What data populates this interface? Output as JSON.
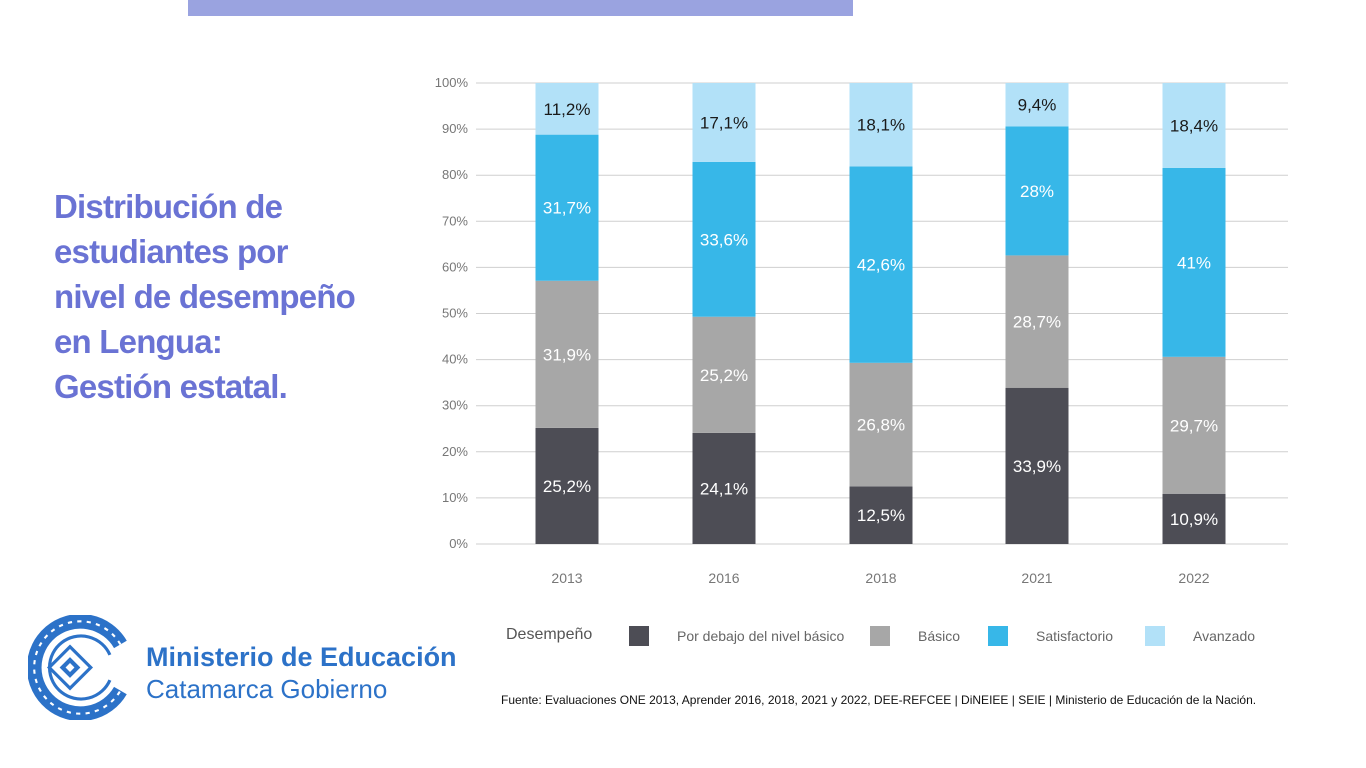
{
  "title_lines": [
    "Distribución de",
    "estudiantes por",
    "nivel de desempeño",
    "en Lengua:",
    "Gestión estatal."
  ],
  "colors": {
    "accent": "#6a73d4",
    "topbar": "#9aa3e0",
    "brand": "#2c72c8"
  },
  "org": {
    "line1": "Ministerio de Educación",
    "line2": "Catamarca Gobierno"
  },
  "source": "Fuente: Evaluaciones  ONE 2013, Aprender  2016, 2018,  2021  y 2022, DEE-REFCEE | DiNEIEE | SEIE | Ministerio  de Educación  de la Nación.",
  "chart_data": {
    "type": "bar",
    "stacked": true,
    "categories": [
      "2013",
      "2016",
      "2018",
      "2021",
      "2022"
    ],
    "ylim": [
      0,
      100
    ],
    "y_ticks": [
      "0%",
      "10%",
      "20%",
      "30%",
      "40%",
      "50%",
      "60%",
      "70%",
      "80%",
      "90%",
      "100%"
    ],
    "grid": true,
    "legend_title": "Desempeño",
    "legend_position": "bottom",
    "series": [
      {
        "name": "Por debajo del nivel básico",
        "color": "#4d4d55",
        "label_color": "#ffffff",
        "values": [
          25.2,
          24.1,
          12.5,
          33.9,
          10.9
        ],
        "labels": [
          "25,2%",
          "24,1%",
          "12,5%",
          "33,9%",
          "10,9%"
        ]
      },
      {
        "name": "Básico",
        "color": "#a7a7a7",
        "label_color": "#ffffff",
        "values": [
          31.9,
          25.2,
          26.8,
          28.7,
          29.7
        ],
        "labels": [
          "31,9%",
          "25,2%",
          "26,8%",
          "28,7%",
          "29,7%"
        ]
      },
      {
        "name": "Satisfactorio",
        "color": "#37b7e8",
        "label_color": "#ffffff",
        "values": [
          31.7,
          33.6,
          42.6,
          28,
          41
        ],
        "labels": [
          "31,7%",
          "33,6%",
          "42,6%",
          "28%",
          "41%"
        ]
      },
      {
        "name": "Avanzado",
        "color": "#b2e1f8",
        "label_color": "#1a1a1a",
        "values": [
          11.2,
          17.1,
          18.1,
          9.4,
          18.4
        ],
        "labels": [
          "11,2%",
          "17,1%",
          "18,1%",
          "9,4%",
          "18,4%"
        ]
      }
    ]
  }
}
